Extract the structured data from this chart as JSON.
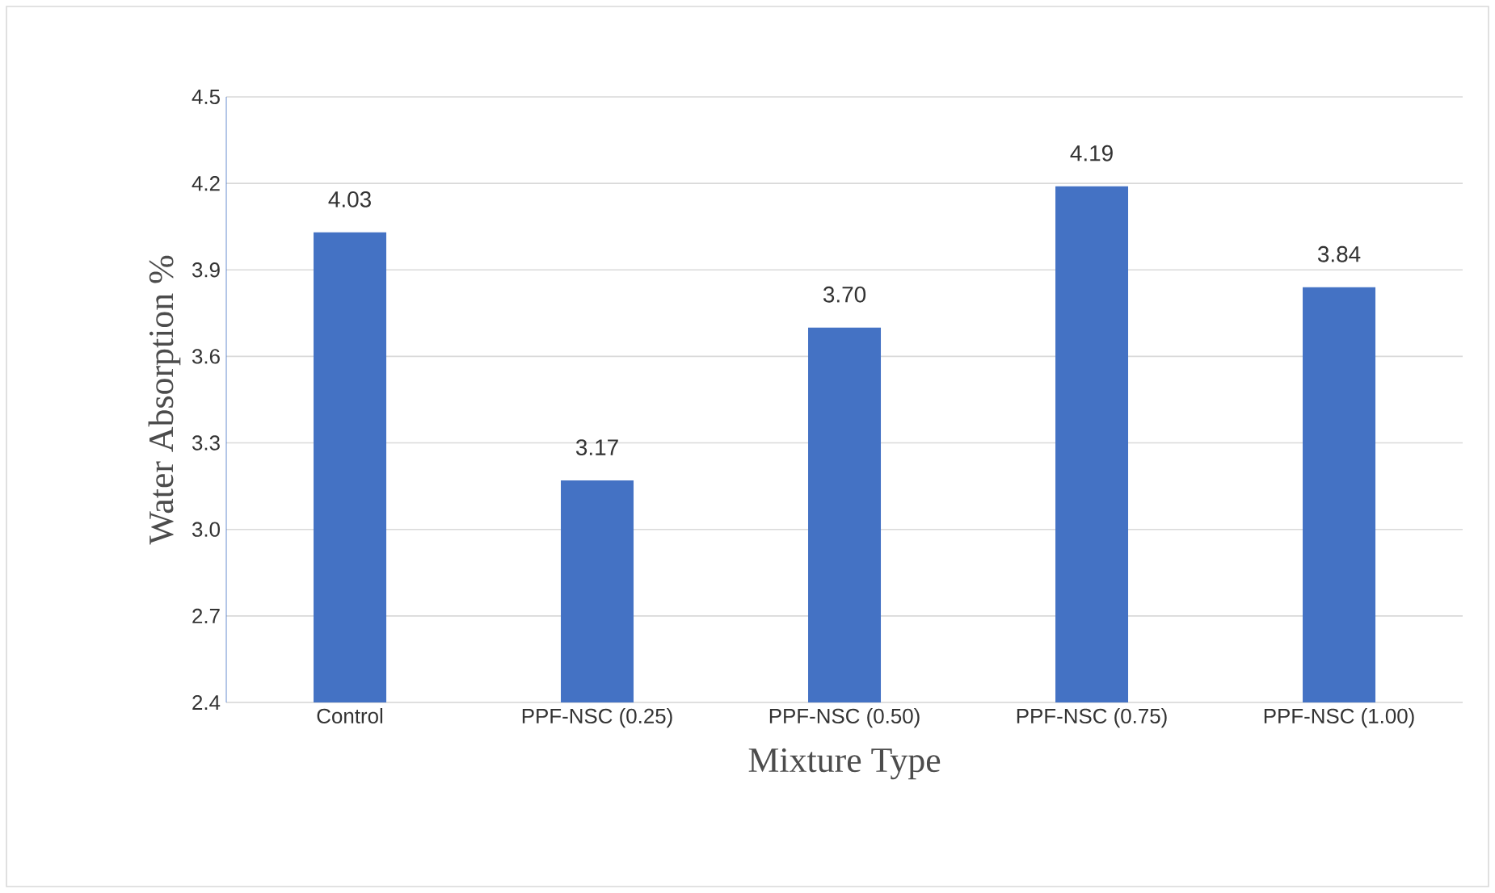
{
  "chart_data": {
    "type": "bar",
    "xlabel": "Mixture Type",
    "ylabel": "Water Absorption %",
    "categories": [
      "Control",
      "PPF-NSC (0.25)",
      "PPF-NSC (0.50)",
      "PPF-NSC (0.75)",
      "PPF-NSC (1.00)"
    ],
    "values": [
      4.03,
      3.17,
      3.7,
      4.19,
      3.84
    ],
    "value_labels": [
      "4.03",
      "3.17",
      "3.70",
      "4.19",
      "3.84"
    ],
    "color": "#4472c4",
    "ylim": [
      2.4,
      4.5
    ],
    "yticks": [
      {
        "value": 2.4,
        "label": "2.4"
      },
      {
        "value": 2.7,
        "label": "2.7"
      },
      {
        "value": 3.0,
        "label": "3.0"
      },
      {
        "value": 3.3,
        "label": "3.3"
      },
      {
        "value": 3.6,
        "label": "3.6"
      },
      {
        "value": 3.9,
        "label": "3.9"
      },
      {
        "value": 4.2,
        "label": "4.2"
      },
      {
        "value": 4.5,
        "label": "4.5"
      }
    ],
    "grid": "y"
  }
}
